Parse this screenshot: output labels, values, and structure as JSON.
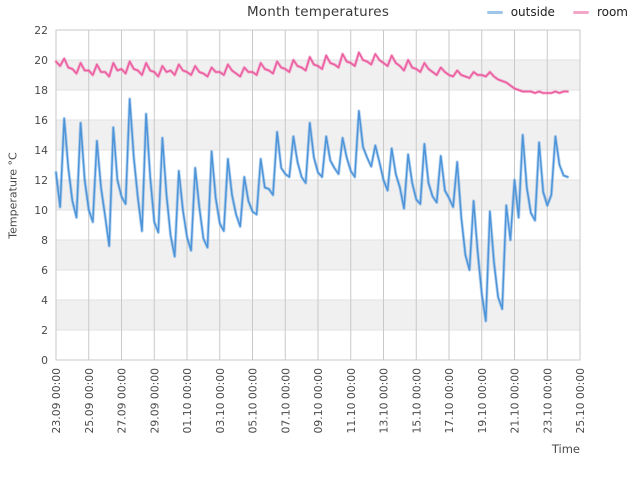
{
  "chart": {
    "title": "Month temperatures",
    "xlabel": "Time",
    "ylabel": "Temperature °C",
    "legend": [
      {
        "label": "outside",
        "swatch": "#9ec6e8"
      },
      {
        "label": "room",
        "swatch": "#f2a7c9"
      }
    ]
  },
  "chart_data": {
    "type": "line",
    "title": "Month temperatures",
    "xlabel": "Time",
    "ylabel": "Temperature °C",
    "ylim": [
      0,
      22
    ],
    "y_ticks": [
      0,
      2,
      4,
      6,
      8,
      10,
      12,
      14,
      16,
      18,
      20,
      22
    ],
    "x_tick_labels": [
      "23.09 00:00",
      "25.09 00:00",
      "27.09 00:00",
      "29.09 00:00",
      "01.10 00:00",
      "03.10 00:00",
      "05.10 00:00",
      "07.10 00:00",
      "09.10 00:00",
      "11.10 00:00",
      "13.10 00:00",
      "15.10 00:00",
      "17.10 00:00",
      "19.10 00:00",
      "21.10 00:00",
      "23.10 00:00",
      "25.10 00:00"
    ],
    "x_tick_interval_days": 2,
    "x_range_days": 32,
    "sample_interval_hours": 6,
    "start_time_label": "23.09 00:00",
    "grid": true,
    "legend_position": "top-right",
    "style": {
      "band_fill": "#f0f0f0",
      "grid_vertical": "#c9c9c9",
      "grid_horizontal": "#e2e2e2",
      "plot_border": "#c9c9c9",
      "background": "#ffffff"
    },
    "series": [
      {
        "name": "outside",
        "color": "#4d94d9",
        "legend_swatch": "#9ec6e8",
        "values": [
          12.5,
          10.2,
          16.1,
          12.8,
          10.6,
          9.5,
          15.8,
          12.0,
          10.0,
          9.2,
          14.6,
          11.5,
          9.6,
          7.6,
          15.5,
          12.0,
          10.9,
          10.4,
          17.4,
          13.5,
          10.8,
          8.6,
          16.4,
          12.2,
          9.2,
          8.5,
          14.8,
          11.0,
          8.3,
          6.9,
          12.6,
          10.0,
          8.2,
          7.3,
          12.8,
          10.2,
          8.1,
          7.5,
          13.9,
          10.8,
          9.1,
          8.6,
          13.4,
          11.0,
          9.7,
          8.9,
          12.2,
          10.6,
          9.9,
          9.7,
          13.4,
          11.5,
          11.4,
          11.0,
          15.2,
          12.8,
          12.4,
          12.2,
          14.9,
          13.2,
          12.2,
          11.8,
          15.8,
          13.5,
          12.5,
          12.2,
          14.9,
          13.3,
          12.8,
          12.4,
          14.8,
          13.5,
          12.6,
          12.2,
          16.6,
          14.2,
          13.5,
          12.9,
          14.3,
          13.2,
          12.0,
          11.3,
          14.1,
          12.4,
          11.5,
          10.1,
          13.7,
          11.8,
          10.7,
          10.4,
          14.4,
          11.8,
          10.9,
          10.5,
          13.6,
          11.3,
          10.8,
          10.2,
          13.2,
          9.5,
          7.0,
          6.0,
          10.6,
          7.2,
          4.4,
          2.6,
          9.9,
          6.5,
          4.2,
          3.4,
          10.3,
          8.0,
          12.0,
          9.5,
          15.0,
          11.5,
          9.8,
          9.3,
          14.5,
          11.2,
          10.3,
          11.0,
          14.9,
          13.0,
          12.3,
          12.2
        ]
      },
      {
        "name": "room",
        "color": "#ec5ba0",
        "legend_swatch": "#f2a7c9",
        "values": [
          19.9,
          19.6,
          20.1,
          19.5,
          19.4,
          19.1,
          19.8,
          19.3,
          19.3,
          19.0,
          19.7,
          19.2,
          19.2,
          18.9,
          19.8,
          19.3,
          19.4,
          19.1,
          19.9,
          19.4,
          19.3,
          19.0,
          19.8,
          19.3,
          19.2,
          18.9,
          19.6,
          19.2,
          19.3,
          19.0,
          19.7,
          19.3,
          19.2,
          19.0,
          19.6,
          19.2,
          19.1,
          18.9,
          19.5,
          19.2,
          19.2,
          19.0,
          19.7,
          19.3,
          19.1,
          18.9,
          19.5,
          19.2,
          19.2,
          19.0,
          19.8,
          19.4,
          19.3,
          19.1,
          19.9,
          19.5,
          19.4,
          19.2,
          20.0,
          19.6,
          19.5,
          19.3,
          20.2,
          19.7,
          19.6,
          19.4,
          20.3,
          19.8,
          19.7,
          19.5,
          20.4,
          19.9,
          19.8,
          19.6,
          20.5,
          20.0,
          19.9,
          19.7,
          20.4,
          20.0,
          19.8,
          19.6,
          20.3,
          19.8,
          19.6,
          19.3,
          20.0,
          19.5,
          19.4,
          19.2,
          19.8,
          19.4,
          19.2,
          19.0,
          19.5,
          19.2,
          19.0,
          18.9,
          19.3,
          19.0,
          18.9,
          18.8,
          19.2,
          19.0,
          19.0,
          18.9,
          19.2,
          18.9,
          18.7,
          18.6,
          18.5,
          18.3,
          18.1,
          18.0,
          17.9,
          17.9,
          17.9,
          17.8,
          17.9,
          17.8,
          17.8,
          17.8,
          17.9,
          17.8,
          17.9,
          17.9
        ]
      }
    ]
  }
}
